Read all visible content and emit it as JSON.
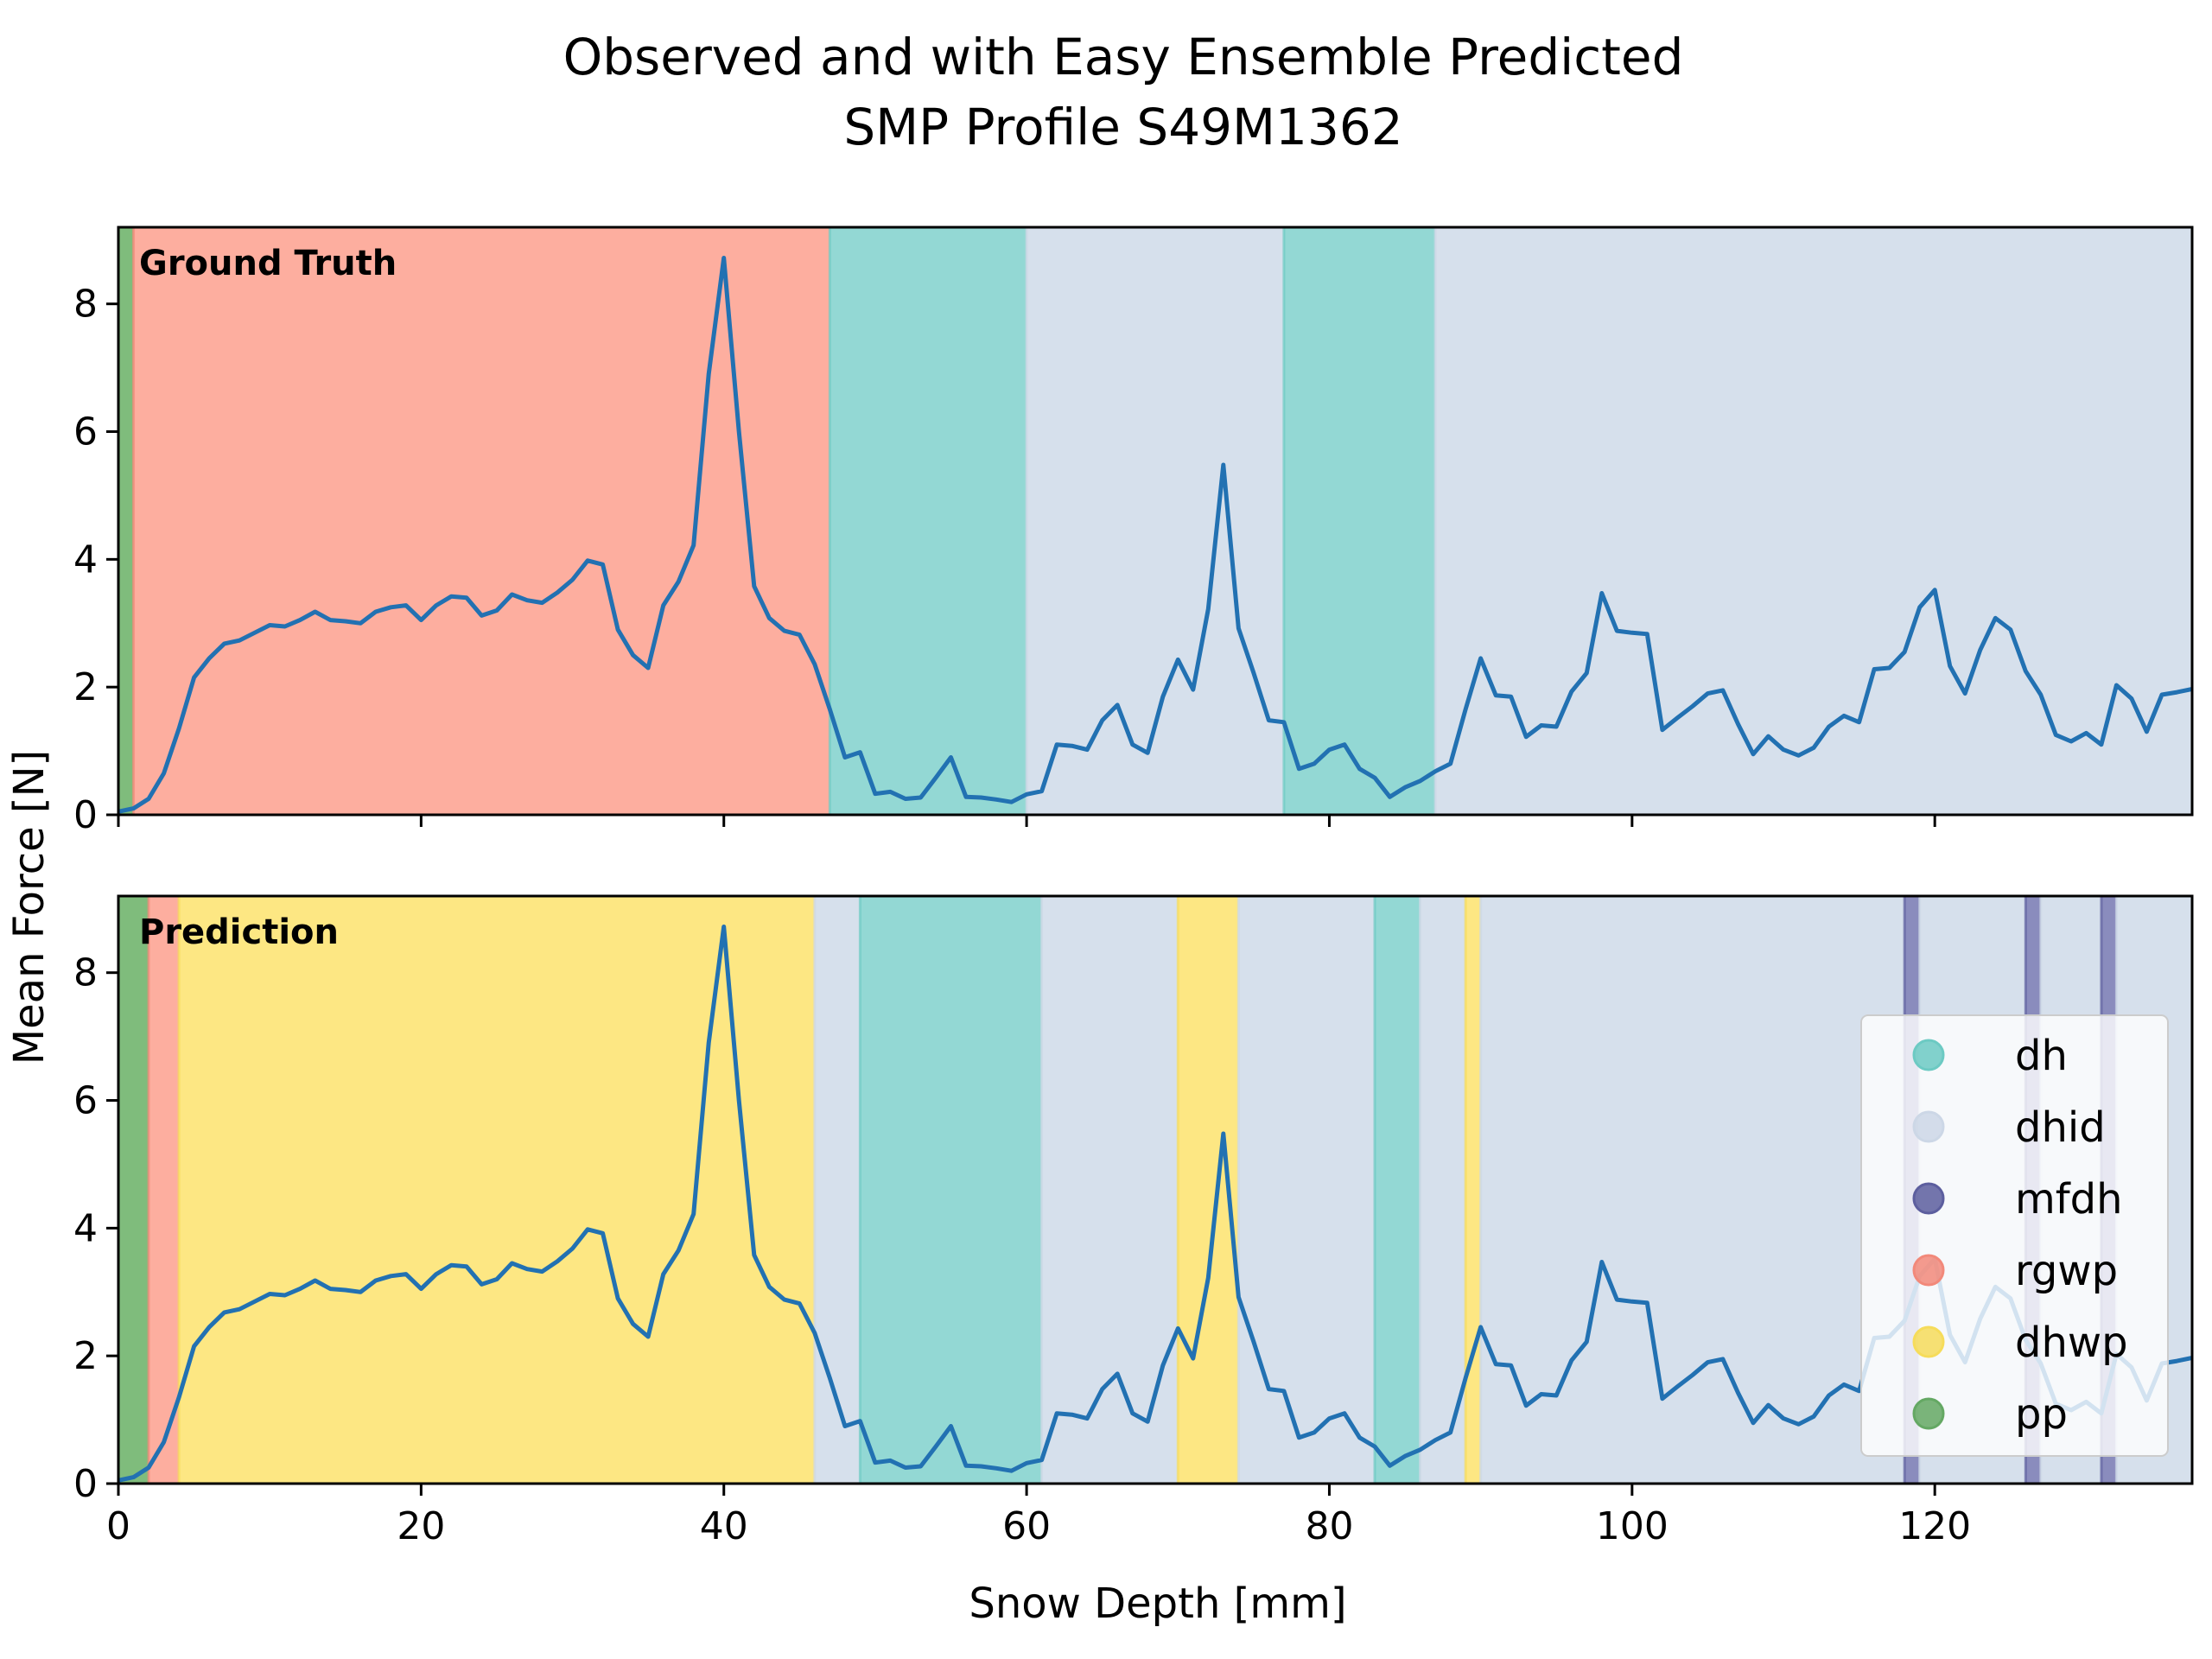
{
  "chart_data": {
    "type": "line",
    "title": "Observed and with Easy Ensemble Predicted",
    "subtitle": "SMP Profile S49M1362",
    "xlabel": "Snow Depth [mm]",
    "ylabel": "Mean Force [N]",
    "xlim": [
      0,
      137
    ],
    "ylim": [
      0,
      9.2
    ],
    "x_ticks": [
      0,
      20,
      40,
      60,
      80,
      100,
      120
    ],
    "y_ticks": [
      0,
      2,
      4,
      6,
      8
    ],
    "grid": false,
    "legend_position": "lower right",
    "class_colors": {
      "dh": "#93d8d4",
      "dhid": "#d6e0ec",
      "mfdh": "#8a8cbd",
      "rgwp": "#fdae9f",
      "dhwp": "#fde783",
      "pp": "#7fbc7c"
    },
    "legend_marker_colors": {
      "dh": "#6ccac3",
      "dhid": "#ccd7e6",
      "mfdh": "#5c5e9e",
      "rgwp": "#f2897a",
      "dhwp": "#f6dc5a",
      "pp": "#64a863"
    },
    "line_color": "#2271b2",
    "legend": [
      "dh",
      "dhid",
      "mfdh",
      "rgwp",
      "dhwp",
      "pp"
    ],
    "series": [
      {
        "x": [
          0,
          1,
          2,
          3,
          4,
          5,
          6,
          7,
          8,
          9,
          10,
          11,
          12,
          13,
          14,
          15,
          16,
          17,
          18,
          19,
          20,
          21,
          22,
          23,
          24,
          25,
          26,
          27,
          28,
          29,
          30,
          31,
          32,
          33,
          34,
          35,
          36,
          37,
          38,
          39,
          40,
          41,
          42,
          43,
          44,
          45,
          46,
          47,
          48,
          49,
          50,
          51,
          52,
          53,
          54,
          55,
          56,
          57,
          58,
          59,
          60,
          61,
          62,
          63,
          64,
          65,
          66,
          67,
          68,
          69,
          70,
          71,
          72,
          73,
          74,
          75,
          76,
          77,
          78,
          79,
          80,
          81,
          82,
          83,
          84,
          85,
          86,
          87,
          88,
          89,
          90,
          91,
          92,
          93,
          94,
          95,
          96,
          97,
          98,
          99,
          100,
          101,
          102,
          103,
          104,
          105,
          106,
          107,
          108,
          109,
          110,
          111,
          112,
          113,
          114,
          115,
          116,
          117,
          118,
          119,
          120,
          121,
          122,
          123,
          124,
          125,
          126,
          127,
          128,
          129,
          130,
          131,
          132,
          133,
          134,
          135,
          136,
          137
        ],
        "y": [
          0.05,
          0.1,
          0.25,
          0.65,
          1.35,
          2.15,
          2.45,
          2.68,
          2.73,
          2.85,
          2.97,
          2.95,
          3.05,
          3.18,
          3.05,
          3.03,
          3.0,
          3.18,
          3.25,
          3.28,
          3.05,
          3.28,
          3.42,
          3.4,
          3.12,
          3.2,
          3.45,
          3.36,
          3.32,
          3.48,
          3.68,
          3.98,
          3.92,
          2.9,
          2.5,
          2.3,
          3.28,
          3.65,
          4.22,
          6.9,
          8.72,
          6.0,
          3.58,
          3.08,
          2.88,
          2.82,
          2.36,
          1.65,
          0.9,
          0.98,
          0.33,
          0.36,
          0.25,
          0.27,
          0.58,
          0.9,
          0.28,
          0.27,
          0.24,
          0.2,
          0.32,
          0.37,
          1.1,
          1.08,
          1.02,
          1.48,
          1.72,
          1.1,
          0.97,
          1.85,
          2.43,
          1.96,
          3.22,
          5.48,
          2.92,
          2.22,
          1.48,
          1.45,
          0.72,
          0.8,
          1.02,
          1.1,
          0.72,
          0.58,
          0.28,
          0.43,
          0.53,
          0.68,
          0.8,
          1.65,
          2.45,
          1.87,
          1.85,
          1.22,
          1.4,
          1.38,
          1.93,
          2.22,
          3.47,
          2.88,
          2.85,
          2.83,
          1.33,
          1.52,
          1.7,
          1.9,
          1.95,
          1.42,
          0.95,
          1.23,
          1.02,
          0.93,
          1.05,
          1.38,
          1.55,
          1.45,
          2.28,
          2.3,
          2.55,
          3.25,
          3.52,
          2.33,
          1.9,
          2.58,
          3.08,
          2.9,
          2.25,
          1.88,
          1.25,
          1.15,
          1.28,
          1.1,
          2.03,
          1.82,
          1.3,
          1.88,
          1.92,
          1.97
        ]
      }
    ],
    "panels": [
      {
        "label": "Ground Truth",
        "segments": [
          {
            "class": "pp",
            "start": 0,
            "end": 1
          },
          {
            "class": "rgwp",
            "start": 1,
            "end": 47
          },
          {
            "class": "dh",
            "start": 47,
            "end": 60
          },
          {
            "class": "dhid",
            "start": 60,
            "end": 77
          },
          {
            "class": "dh",
            "start": 77,
            "end": 87
          },
          {
            "class": "dhid",
            "start": 87,
            "end": 137
          }
        ]
      },
      {
        "label": "Prediction",
        "segments": [
          {
            "class": "pp",
            "start": 0,
            "end": 2
          },
          {
            "class": "rgwp",
            "start": 2,
            "end": 4
          },
          {
            "class": "dhwp",
            "start": 4,
            "end": 46
          },
          {
            "class": "dhid",
            "start": 46,
            "end": 49
          },
          {
            "class": "dh",
            "start": 49,
            "end": 61
          },
          {
            "class": "dhid",
            "start": 61,
            "end": 70
          },
          {
            "class": "dhwp",
            "start": 70,
            "end": 74
          },
          {
            "class": "dhid",
            "start": 74,
            "end": 83
          },
          {
            "class": "dh",
            "start": 83,
            "end": 86
          },
          {
            "class": "dhid",
            "start": 86,
            "end": 89
          },
          {
            "class": "dhwp",
            "start": 89,
            "end": 90
          },
          {
            "class": "dhid",
            "start": 90,
            "end": 118
          },
          {
            "class": "mfdh",
            "start": 118,
            "end": 119
          },
          {
            "class": "dhid",
            "start": 119,
            "end": 126
          },
          {
            "class": "mfdh",
            "start": 126,
            "end": 127
          },
          {
            "class": "dhid",
            "start": 127,
            "end": 131
          },
          {
            "class": "mfdh",
            "start": 131,
            "end": 132
          },
          {
            "class": "dhid",
            "start": 132,
            "end": 137
          }
        ]
      }
    ]
  }
}
